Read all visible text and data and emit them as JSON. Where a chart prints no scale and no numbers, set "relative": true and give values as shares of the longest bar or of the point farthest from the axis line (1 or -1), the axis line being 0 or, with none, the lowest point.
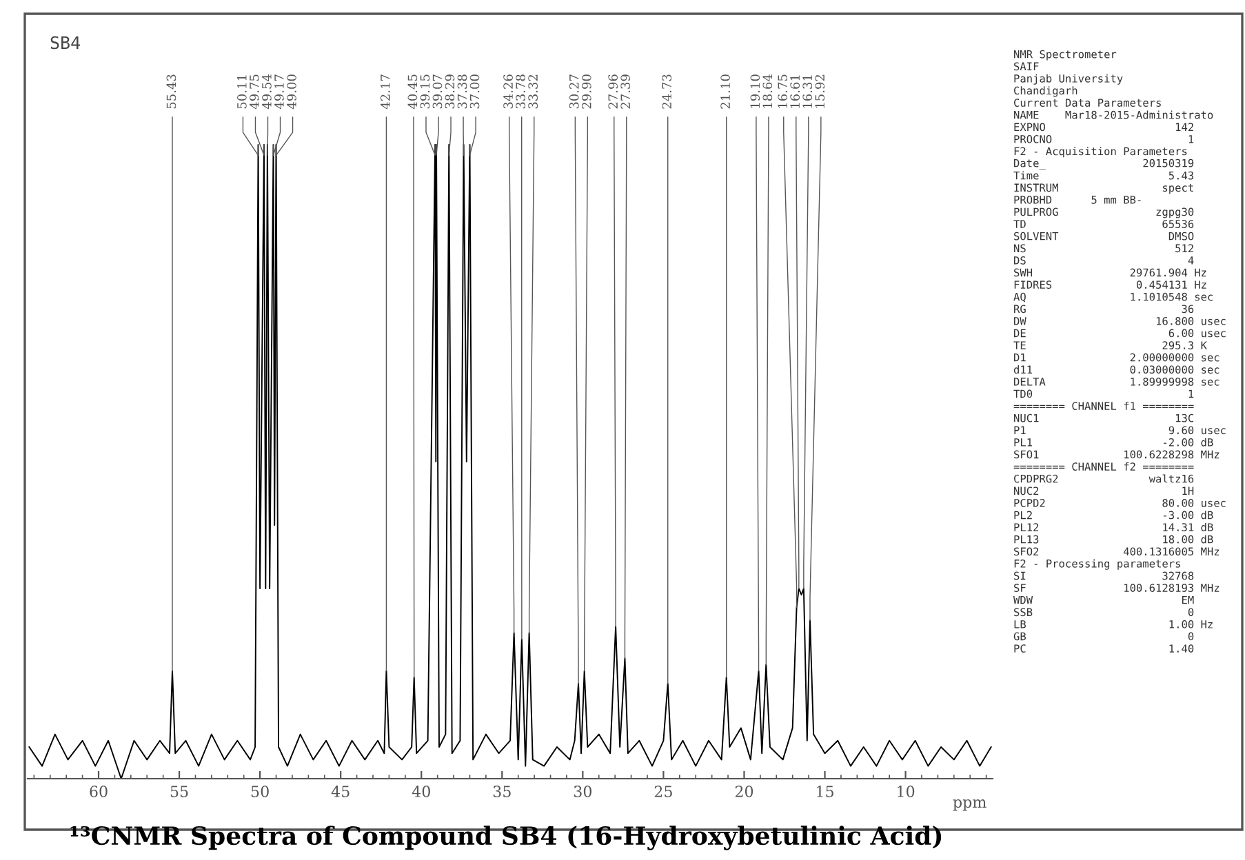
{
  "chart_data": {
    "type": "line",
    "title": "¹³CNMR Spectra of Compound SB4 (16-Hydroxybetulinic Acid)",
    "subtitle": "SB4",
    "xlabel": "ppm",
    "relative": true,
    "xlim": [
      64.4,
      4.6
    ],
    "xticks": [
      60,
      55,
      50,
      45,
      40,
      35,
      30,
      25,
      20,
      15,
      10
    ],
    "grid": false,
    "legend": false,
    "marker": "none",
    "line_style": "solid",
    "series": [
      {
        "color": "#000000",
        "x": [
          64.3,
          63.5,
          62.7,
          61.9,
          61.0,
          60.2,
          59.4,
          58.6,
          57.8,
          57.0,
          56.2,
          55.6,
          55.43,
          55.25,
          54.6,
          53.8,
          53.0,
          52.2,
          51.4,
          50.6,
          50.3,
          50.11,
          50.0,
          49.75,
          49.65,
          49.54,
          49.4,
          49.17,
          49.1,
          49.0,
          48.85,
          48.3,
          47.5,
          46.7,
          45.9,
          45.1,
          44.3,
          43.5,
          42.7,
          42.3,
          42.17,
          42.0,
          41.2,
          40.6,
          40.45,
          40.3,
          39.6,
          39.15,
          39.1,
          39.07,
          38.9,
          38.5,
          38.29,
          38.1,
          37.6,
          37.38,
          37.2,
          37.0,
          36.8,
          36.0,
          35.2,
          34.5,
          34.26,
          34.0,
          33.78,
          33.55,
          33.32,
          33.1,
          32.4,
          31.6,
          30.8,
          30.5,
          30.27,
          30.1,
          29.9,
          29.7,
          29.0,
          28.3,
          27.96,
          27.7,
          27.39,
          27.2,
          26.5,
          25.7,
          25.0,
          24.73,
          24.5,
          23.8,
          23.0,
          22.2,
          21.4,
          21.1,
          20.9,
          20.2,
          19.6,
          19.1,
          18.9,
          18.64,
          18.4,
          17.6,
          17.0,
          16.75,
          16.61,
          16.45,
          16.31,
          16.1,
          15.92,
          15.7,
          15.0,
          14.2,
          13.4,
          12.6,
          11.8,
          11.0,
          10.2,
          9.4,
          8.6,
          7.8,
          7.0,
          6.2,
          5.4,
          4.7
        ],
        "values": [
          0.05,
          0.02,
          0.07,
          0.03,
          0.06,
          0.02,
          0.06,
          0,
          0.06,
          0.03,
          0.06,
          0.04,
          0.17,
          0.04,
          0.06,
          0.02,
          0.07,
          0.03,
          0.06,
          0.03,
          0.05,
          1,
          0.3,
          1,
          0.3,
          1,
          0.3,
          1,
          0.4,
          1,
          0.05,
          0.02,
          0.07,
          0.03,
          0.06,
          0.02,
          0.06,
          0.03,
          0.06,
          0.04,
          0.17,
          0.05,
          0.03,
          0.05,
          0.16,
          0.04,
          0.06,
          1,
          0.5,
          1,
          0.05,
          0.07,
          1,
          0.04,
          0.06,
          1,
          0.5,
          1,
          0.03,
          0.07,
          0.04,
          0.06,
          0.23,
          0.03,
          0.22,
          0.02,
          0.23,
          0.03,
          0.02,
          0.05,
          0.03,
          0.06,
          0.15,
          0.04,
          0.17,
          0.05,
          0.07,
          0.04,
          0.24,
          0.05,
          0.19,
          0.04,
          0.06,
          0.02,
          0.06,
          0.15,
          0.03,
          0.06,
          0.02,
          0.06,
          0.03,
          0.16,
          0.05,
          0.08,
          0.03,
          0.17,
          0.04,
          0.18,
          0.05,
          0.03,
          0.08,
          0.27,
          0.3,
          0.29,
          0.3,
          0.06,
          0.25,
          0.07,
          0.04,
          0.06,
          0.02,
          0.05,
          0.02,
          0.06,
          0.03,
          0.06,
          0.02,
          0.05,
          0.03,
          0.06,
          0.02,
          0.05
        ]
      }
    ],
    "annotations": [
      {
        "text": "55.43",
        "x": 55.43,
        "y": 0.17
      },
      {
        "text": "50.11",
        "x": 50.11,
        "y": 1
      },
      {
        "text": "49.75",
        "x": 49.75,
        "y": 1
      },
      {
        "text": "49.54",
        "x": 49.54,
        "y": 1
      },
      {
        "text": "49.17",
        "x": 49.17,
        "y": 1
      },
      {
        "text": "49.00",
        "x": 49.0,
        "y": 1
      },
      {
        "text": "42.17",
        "x": 42.17,
        "y": 0.17
      },
      {
        "text": "40.45",
        "x": 40.45,
        "y": 0.16
      },
      {
        "text": "39.15",
        "x": 39.15,
        "y": 1
      },
      {
        "text": "39.07",
        "x": 39.07,
        "y": 1
      },
      {
        "text": "38.29",
        "x": 38.29,
        "y": 1
      },
      {
        "text": "37.38",
        "x": 37.38,
        "y": 1
      },
      {
        "text": "37.00",
        "x": 37.0,
        "y": 1
      },
      {
        "text": "34.26",
        "x": 34.26,
        "y": 0.23
      },
      {
        "text": "33.78",
        "x": 33.78,
        "y": 0.22
      },
      {
        "text": "33.32",
        "x": 33.32,
        "y": 0.23
      },
      {
        "text": "30.27",
        "x": 30.27,
        "y": 0.15
      },
      {
        "text": "29.90",
        "x": 29.9,
        "y": 0.17
      },
      {
        "text": "27.96",
        "x": 27.96,
        "y": 0.24
      },
      {
        "text": "27.39",
        "x": 27.39,
        "y": 0.19
      },
      {
        "text": "24.73",
        "x": 24.73,
        "y": 0.15
      },
      {
        "text": "21.10",
        "x": 21.1,
        "y": 0.16
      },
      {
        "text": "19.10",
        "x": 19.1,
        "y": 0.17
      },
      {
        "text": "18.64",
        "x": 18.64,
        "y": 0.18
      },
      {
        "text": "16.75",
        "x": 16.75,
        "y": 0.27
      },
      {
        "text": "16.61",
        "x": 16.61,
        "y": 0.3
      },
      {
        "text": "16.31",
        "x": 16.31,
        "y": 0.3
      },
      {
        "text": "15.92",
        "x": 15.92,
        "y": 0.25
      },
      "NMR Spectrometer",
      "SAIF",
      "Panjab University",
      "Chandigarh",
      "Current Data Parameters",
      "NAME    Mar18-2015-Administrato",
      "EXPNO                    142",
      "PROCNO                     1",
      "F2 - Acquisition Parameters",
      "Date_               20150319",
      "Time                    5.43",
      "INSTRUM                spect",
      "PROBHD      5 mm BB-",
      "PULPROG               zgpg30",
      "TD                     65536",
      "SOLVENT                 DMSO",
      "NS                       512",
      "DS                         4",
      "SWH               29761.904 Hz",
      "FIDRES             0.454131 Hz",
      "AQ                1.1010548 sec",
      "RG                        36",
      "DW                    16.800 usec",
      "DE                      6.00 usec",
      "TE                     295.3 K",
      "D1                2.00000000 sec",
      "d11               0.03000000 sec",
      "DELTA             1.89999998 sec",
      "TD0                        1",
      "======== CHANNEL f1 ========",
      "NUC1                     13C",
      "P1                      9.60 usec",
      "PL1                    -2.00 dB",
      "SFO1             100.6228298 MHz",
      "======== CHANNEL f2 ========",
      "CPDPRG2              waltz16",
      "NUC2                      1H",
      "PCPD2                  80.00 usec",
      "PL2                    -3.00 dB",
      "PL12                   14.31 dB",
      "PL13                   18.00 dB",
      "SFO2             400.1316005 MHz",
      "F2 - Processing parameters",
      "SI                     32768",
      "SF               100.6128193 MHz",
      "WDW                       EM",
      "SSB                        0",
      "LB                      1.00 Hz",
      "GB                         0",
      "PC                      1.40"
    ]
  }
}
